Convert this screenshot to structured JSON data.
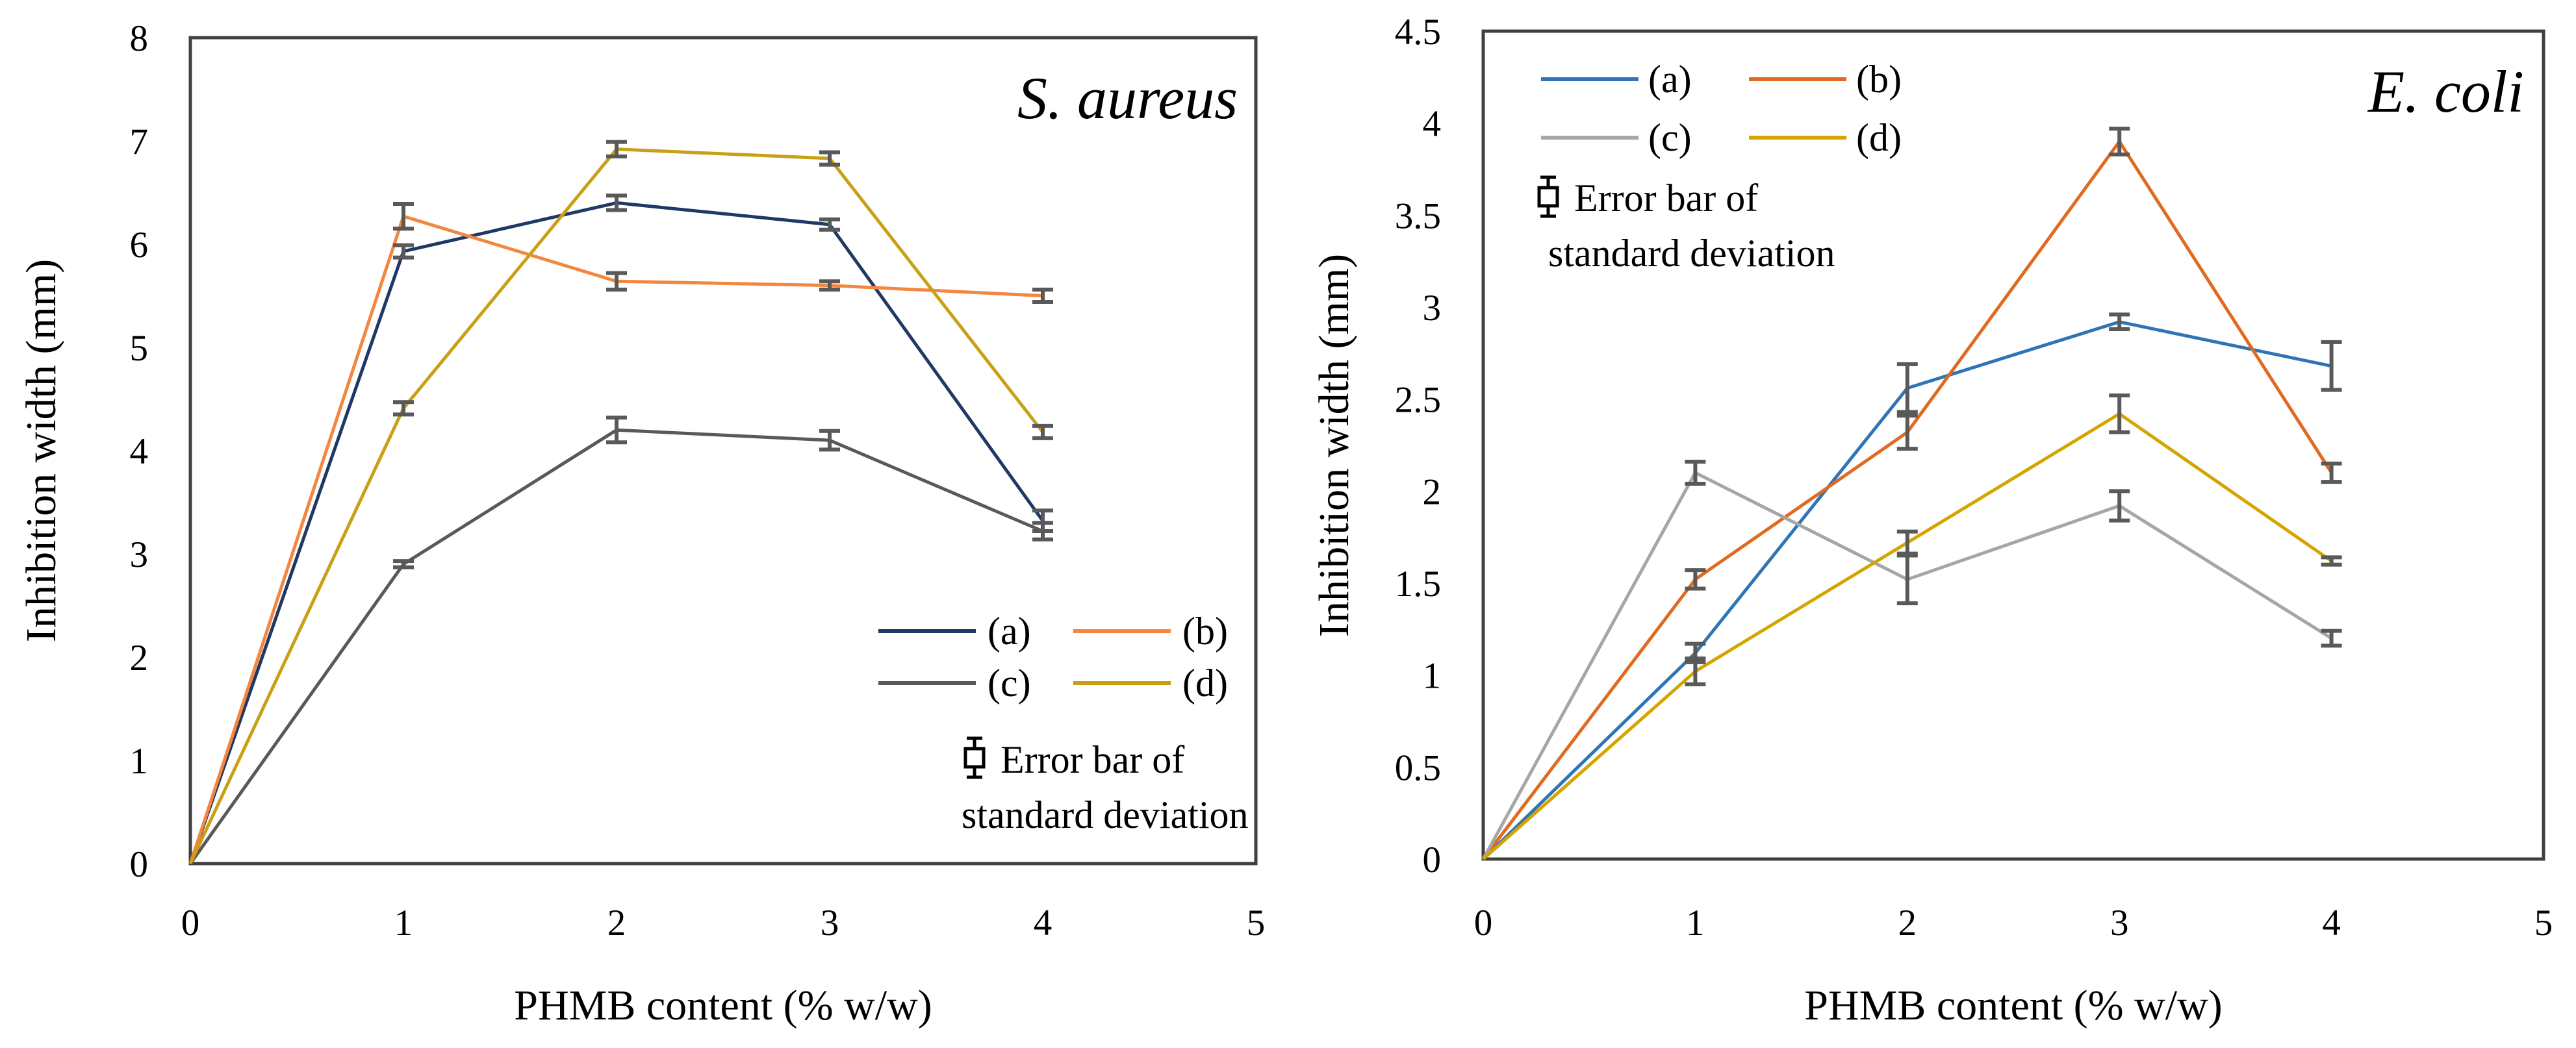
{
  "chart_data": [
    {
      "type": "line",
      "title": "S. aureus",
      "xlabel": "PHMB content (% w/w)",
      "ylabel": "Inhibition width (mm)",
      "xlim": [
        0,
        5
      ],
      "ylim": [
        0,
        8
      ],
      "x_ticks": [
        0,
        1,
        2,
        3,
        4,
        5
      ],
      "y_ticks": [
        0,
        1,
        2,
        3,
        4,
        5,
        6,
        7,
        8
      ],
      "x": [
        0,
        1,
        2,
        3,
        4
      ],
      "legend_position": "lower-right",
      "error_note": [
        "Error bar of",
        "standard deviation"
      ],
      "series": [
        {
          "name": "(a)",
          "color": "#1f3864",
          "values": [
            0,
            5.93,
            6.4,
            6.19,
            3.32
          ],
          "errors": [
            0,
            0.06,
            0.07,
            0.05,
            0.1
          ]
        },
        {
          "name": "(b)",
          "color": "#f4873f",
          "values": [
            0,
            6.27,
            5.64,
            5.6,
            5.5
          ],
          "errors": [
            0,
            0.12,
            0.08,
            0.04,
            0.06
          ]
        },
        {
          "name": "(c)",
          "color": "#595959",
          "values": [
            0,
            2.9,
            4.2,
            4.1,
            3.22
          ],
          "errors": [
            0,
            0.03,
            0.12,
            0.09,
            0.08
          ]
        },
        {
          "name": "(d)",
          "color": "#c9a015",
          "values": [
            0,
            4.41,
            6.92,
            6.83,
            4.18
          ],
          "errors": [
            0,
            0.06,
            0.07,
            0.06,
            0.06
          ]
        }
      ]
    },
    {
      "type": "line",
      "title": "E. coli",
      "xlabel": "PHMB content (% w/w)",
      "ylabel": "Inhibition width (mm)",
      "xlim": [
        0,
        5
      ],
      "ylim": [
        0,
        4.5
      ],
      "x_ticks": [
        0,
        1,
        2,
        3,
        4,
        5
      ],
      "y_ticks": [
        0,
        0.5,
        1,
        1.5,
        2,
        2.5,
        3,
        3.5,
        4,
        4.5
      ],
      "x": [
        0,
        1,
        2,
        3,
        4
      ],
      "legend_position": "top-left",
      "error_note": [
        "Error bar of",
        "standard deviation"
      ],
      "series": [
        {
          "name": "(a)",
          "color": "#2e75b6",
          "values": [
            0,
            1.12,
            2.56,
            2.92,
            2.68
          ],
          "errors": [
            0,
            0.05,
            0.13,
            0.04,
            0.13
          ]
        },
        {
          "name": "(b)",
          "color": "#e06a1f",
          "values": [
            0,
            1.52,
            2.32,
            3.9,
            2.1
          ],
          "errors": [
            0,
            0.05,
            0.09,
            0.07,
            0.05
          ]
        },
        {
          "name": "(c)",
          "color": "#a6a6a6",
          "values": [
            0,
            2.1,
            1.52,
            1.92,
            1.2
          ],
          "errors": [
            0,
            0.06,
            0.13,
            0.08,
            0.04
          ]
        },
        {
          "name": "(d)",
          "color": "#d4a500",
          "values": [
            0,
            1.02,
            1.72,
            2.42,
            1.62
          ],
          "errors": [
            0,
            0.07,
            0.06,
            0.1,
            0.02
          ]
        }
      ]
    }
  ]
}
